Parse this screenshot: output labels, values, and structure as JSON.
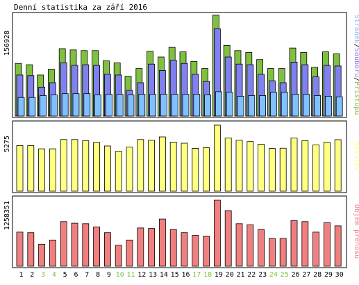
{
  "title": "Denní statistika za září 2016",
  "chart_data": [
    {
      "type": "bar",
      "categories": [
        "1",
        "2",
        "3",
        "4",
        "5",
        "6",
        "7",
        "8",
        "9",
        "10",
        "11",
        "12",
        "13",
        "14",
        "15",
        "16",
        "17",
        "18",
        "19",
        "20",
        "21",
        "22",
        "23",
        "24",
        "25",
        "26",
        "27",
        "28",
        "29",
        "30"
      ],
      "weekend_days": [
        "3",
        "4",
        "10",
        "11",
        "17",
        "18",
        "24",
        "25"
      ],
      "ylabel": "156928",
      "ylim": [
        0,
        156928
      ],
      "legend": [
        "Stránek",
        "Souborů",
        "Přístupů"
      ],
      "series": [
        {
          "name": "Přístupů",
          "color": "#80c040",
          "values": [
            82000,
            80000,
            64000,
            73000,
            105000,
            103000,
            102000,
            102000,
            86000,
            83000,
            62000,
            74000,
            101000,
            92000,
            107000,
            100000,
            85000,
            74000,
            157000,
            110000,
            102000,
            99000,
            88000,
            74000,
            74000,
            106000,
            99000,
            76000,
            100000,
            97000
          ]
        },
        {
          "name": "Souborů",
          "color": "#8080f0",
          "values": [
            64000,
            63000,
            45000,
            52000,
            83000,
            79000,
            80000,
            79000,
            65000,
            64000,
            40000,
            52000,
            81000,
            71000,
            87000,
            82000,
            65000,
            54000,
            136000,
            92000,
            81000,
            80000,
            65000,
            55000,
            52000,
            84000,
            80000,
            61000,
            79000,
            78000
          ]
        },
        {
          "name": "Stránek",
          "color": "#80c0ff",
          "values": [
            29000,
            29000,
            32000,
            33000,
            35000,
            35000,
            35000,
            33000,
            34000,
            34000,
            33000,
            34000,
            34000,
            34000,
            34000,
            34000,
            34000,
            33000,
            38000,
            37000,
            31000,
            32000,
            32000,
            37000,
            37000,
            34000,
            34000,
            32000,
            31000,
            30000
          ]
        }
      ]
    },
    {
      "type": "bar",
      "categories": [
        "1",
        "2",
        "3",
        "4",
        "5",
        "6",
        "7",
        "8",
        "9",
        "10",
        "11",
        "12",
        "13",
        "14",
        "15",
        "16",
        "17",
        "18",
        "19",
        "20",
        "21",
        "22",
        "23",
        "24",
        "25",
        "26",
        "27",
        "28",
        "29",
        "30"
      ],
      "ylabel": "5275",
      "ylim": [
        0,
        5275
      ],
      "legend": [
        "Návštěv"
      ],
      "series": [
        {
          "name": "Návštěv",
          "color": "#ffff80",
          "values": [
            3640,
            3640,
            3380,
            3380,
            4120,
            4120,
            4030,
            3900,
            3610,
            3180,
            3520,
            4120,
            4070,
            4330,
            3920,
            3830,
            3420,
            3470,
            5275,
            4250,
            4070,
            3960,
            3750,
            3410,
            3430,
            4240,
            4030,
            3700,
            3910,
            4110
          ]
        }
      ]
    },
    {
      "type": "bar",
      "categories": [
        "1",
        "2",
        "3",
        "4",
        "5",
        "6",
        "7",
        "8",
        "9",
        "10",
        "11",
        "12",
        "13",
        "14",
        "15",
        "16",
        "17",
        "18",
        "19",
        "20",
        "21",
        "22",
        "23",
        "24",
        "25",
        "26",
        "27",
        "28",
        "29",
        "30"
      ],
      "ylabel": "1258351",
      "ylim": [
        0,
        1258351
      ],
      "legend": [
        "Objem přenosu"
      ],
      "series": [
        {
          "name": "Objem přenosu",
          "color": "#f08080",
          "values": [
            650000,
            640000,
            420000,
            500000,
            850000,
            820000,
            810000,
            750000,
            640000,
            400000,
            500000,
            730000,
            720000,
            900000,
            700000,
            640000,
            590000,
            570000,
            1258351,
            1060000,
            810000,
            790000,
            700000,
            530000,
            530000,
            870000,
            850000,
            650000,
            830000,
            770000
          ]
        }
      ]
    }
  ]
}
